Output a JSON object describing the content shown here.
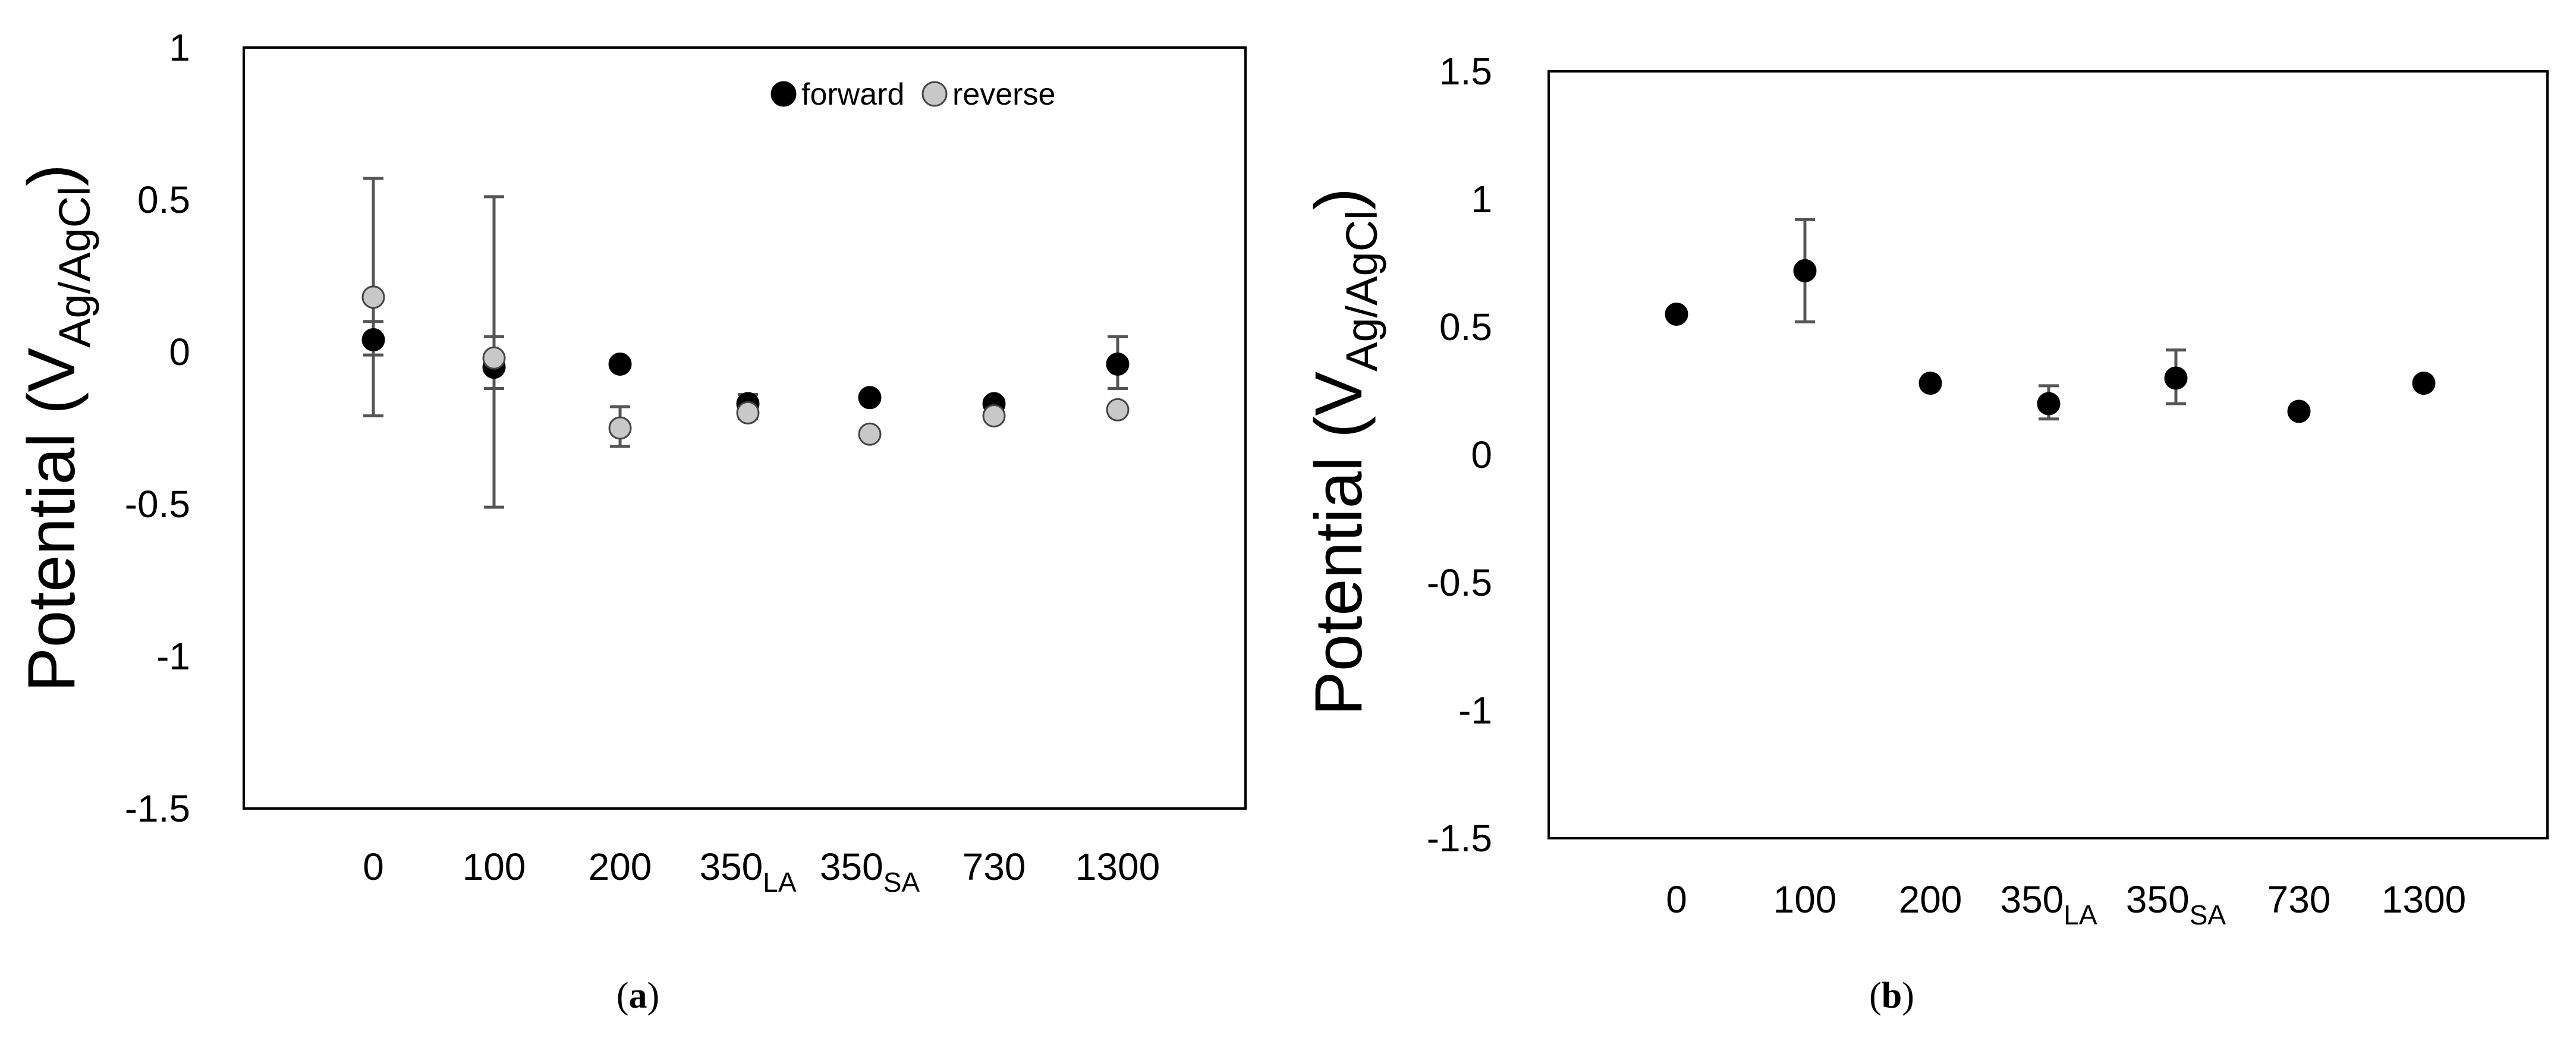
{
  "chart_data": [
    {
      "panel": "a",
      "type": "scatter",
      "title": "",
      "ylabel_main": "Potential (V",
      "ylabel_sub": "Ag/AgCl",
      "ylabel_end": ")",
      "ylim": [
        -1.5,
        1
      ],
      "yticks": [
        {
          "value": 1,
          "label": "1"
        },
        {
          "value": 0.5,
          "label": "0.5"
        },
        {
          "value": 0,
          "label": "0"
        },
        {
          "value": -0.5,
          "label": "-0.5"
        },
        {
          "value": -1,
          "label": "-1"
        },
        {
          "value": -1.5,
          "label": "-1.5"
        }
      ],
      "categories": [
        {
          "main": "0",
          "sub": ""
        },
        {
          "main": "100",
          "sub": ""
        },
        {
          "main": "200",
          "sub": ""
        },
        {
          "main": "350",
          "sub": "LA"
        },
        {
          "main": "350",
          "sub": "SA"
        },
        {
          "main": "730",
          "sub": ""
        },
        {
          "main": "1300",
          "sub": ""
        }
      ],
      "legend": {
        "placement": "top-right",
        "entries": [
          "forward",
          "reverse"
        ]
      },
      "grid": false,
      "series": [
        {
          "name": "forward",
          "color": "#000000",
          "values": [
            0.04,
            -0.05,
            -0.04,
            -0.17,
            -0.15,
            -0.17,
            -0.04
          ],
          "err_low": [
            -0.01,
            -0.51,
            null,
            -0.2,
            null,
            null,
            -0.12
          ],
          "err_high": [
            0.1,
            0.51,
            null,
            -0.14,
            null,
            null,
            0.05
          ]
        },
        {
          "name": "reverse",
          "color": "#c8c8c8",
          "values": [
            0.18,
            -0.02,
            -0.25,
            -0.2,
            -0.27,
            -0.21,
            -0.19
          ],
          "err_low": [
            -0.21,
            -0.12,
            -0.31,
            -0.22,
            null,
            null,
            null
          ],
          "err_high": [
            0.57,
            0.05,
            -0.18,
            -0.16,
            null,
            null,
            null
          ]
        }
      ]
    },
    {
      "panel": "b",
      "type": "scatter",
      "title": "",
      "ylabel_main": "Potential (V",
      "ylabel_sub": "Ag/AgCl",
      "ylabel_end": ")",
      "ylim": [
        -1.5,
        1.5
      ],
      "yticks": [
        {
          "value": 1.5,
          "label": "1.5"
        },
        {
          "value": 1,
          "label": "1"
        },
        {
          "value": 0.5,
          "label": "0.5"
        },
        {
          "value": 0,
          "label": "0"
        },
        {
          "value": -0.5,
          "label": "-0.5"
        },
        {
          "value": -1,
          "label": "-1"
        },
        {
          "value": -1.5,
          "label": "-1.5"
        }
      ],
      "categories": [
        {
          "main": "0",
          "sub": ""
        },
        {
          "main": "100",
          "sub": ""
        },
        {
          "main": "200",
          "sub": ""
        },
        {
          "main": "350",
          "sub": "LA"
        },
        {
          "main": "350",
          "sub": "SA"
        },
        {
          "main": "730",
          "sub": ""
        },
        {
          "main": "1300",
          "sub": ""
        }
      ],
      "legend": null,
      "grid": false,
      "series": [
        {
          "name": "",
          "color": "#000000",
          "values": [
            0.55,
            0.72,
            0.28,
            0.2,
            0.3,
            0.17,
            0.28
          ],
          "err_low": [
            null,
            0.52,
            null,
            0.14,
            0.2,
            null,
            null
          ],
          "err_high": [
            null,
            0.92,
            null,
            0.27,
            0.41,
            null,
            null
          ]
        }
      ]
    }
  ],
  "panel_labels": [
    {
      "open": "(",
      "letter": "a",
      "close": ")"
    },
    {
      "open": "(",
      "letter": "b",
      "close": ")"
    }
  ]
}
